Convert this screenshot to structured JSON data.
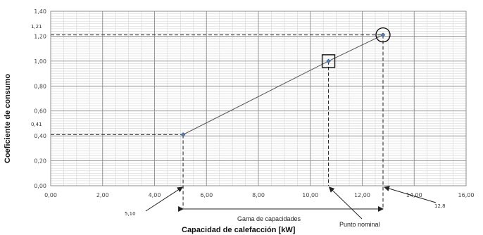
{
  "chart_data": {
    "type": "line",
    "xlabel": "Capacidad de calefacción [kW]",
    "ylabel": "Coeficiente de consumo",
    "xlim": [
      0,
      16
    ],
    "ylim": [
      0,
      1.4
    ],
    "x_ticks": [
      "0,00",
      "2,00",
      "4,00",
      "6,00",
      "8,00",
      "10,00",
      "12,00",
      "14,00",
      "16,00"
    ],
    "y_ticks": [
      "0,00",
      "0,20",
      "0,40",
      "0,60",
      "0,80",
      "1,00",
      "1,20",
      "1,40"
    ],
    "grid": true,
    "series": [
      {
        "x": [
          5.1,
          10.7,
          12.8
        ],
        "y": [
          0.41,
          1.0,
          1.21
        ],
        "color": "#4f81bd"
      }
    ],
    "annotations": {
      "y_low_label": "0,41",
      "y_high_label": "1,21",
      "x_low_label": "5,10",
      "x_high_label": "12,8",
      "range_label": "Gama de capacidades",
      "nominal_label": "Punto nominal"
    }
  }
}
